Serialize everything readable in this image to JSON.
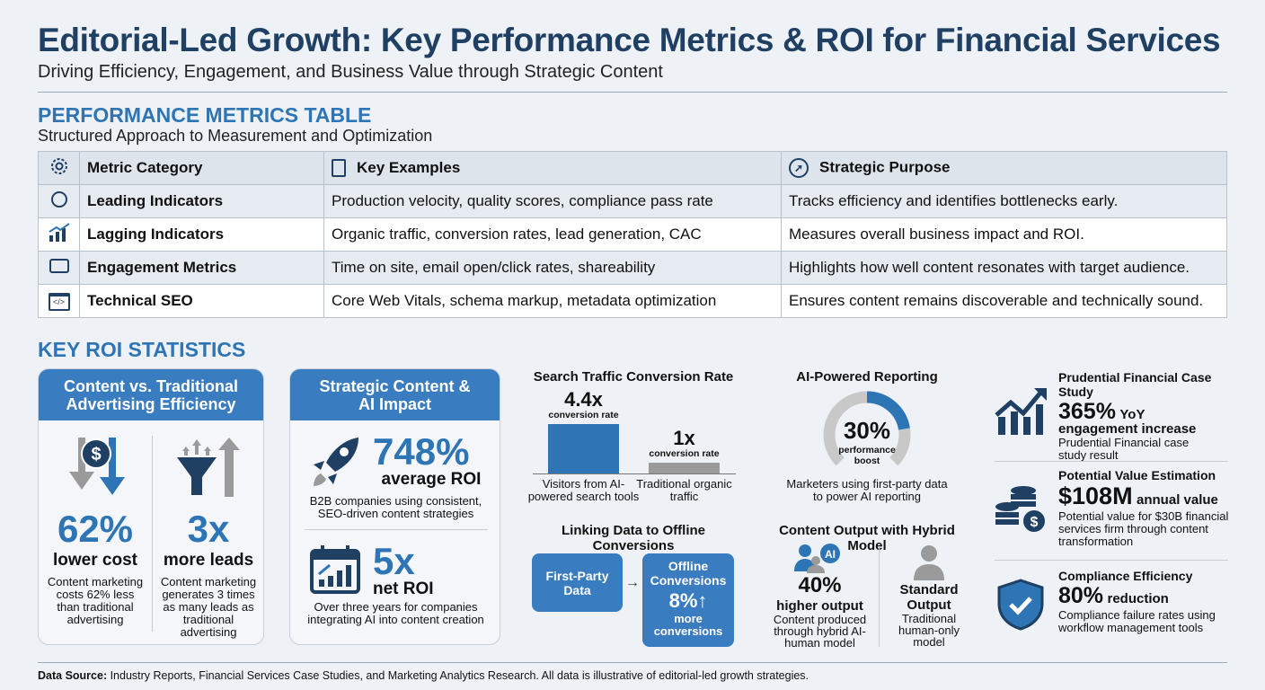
{
  "header": {
    "title": "Editorial-Led Growth: Key Performance Metrics & ROI for Financial Services",
    "subtitle": "Driving Efficiency, Engagement, and Business Value through Strategic Content"
  },
  "table_section": {
    "title": "PERFORMANCE METRICS TABLE",
    "subtitle": "Structured Approach to Measurement and Optimization",
    "columns": [
      {
        "label": "Metric Category",
        "icon": "gear-icon"
      },
      {
        "label": "Key Examples",
        "icon": "clipboard-icon"
      },
      {
        "label": "Strategic Purpose",
        "icon": "compass-icon"
      }
    ],
    "rows": [
      {
        "icon": "stopwatch-icon",
        "category": "Leading Indicators",
        "examples": "Production velocity, quality scores, compliance pass rate",
        "purpose": "Tracks efficiency and identifies bottlenecks early."
      },
      {
        "icon": "bar-chart-icon",
        "category": "Lagging Indicators",
        "examples": "Organic traffic, conversion rates, lead generation, CAC",
        "purpose": "Measures overall business impact and ROI."
      },
      {
        "icon": "cursor-click-icon",
        "category": "Engagement Metrics",
        "examples": "Time on site, email open/click rates, shareability",
        "purpose": "Highlights how well content resonates with target audience."
      },
      {
        "icon": "code-window-icon",
        "category": "Technical SEO",
        "examples": "Core Web Vitals, schema markup, metadata optimization",
        "purpose": "Ensures content remains discoverable and technically sound."
      }
    ]
  },
  "roi": {
    "title": "KEY ROI STATISTICS",
    "card1": {
      "title": "Content vs. Traditional Advertising Efficiency",
      "left": {
        "value": "62%",
        "label": "lower cost",
        "desc": "Content marketing costs 62% less than traditional advertising"
      },
      "right": {
        "value": "3x",
        "label": "more leads",
        "desc": "Content marketing generates 3 times as many leads as traditional advertising"
      }
    },
    "card2": {
      "title": "Strategic Content & AI Impact",
      "top": {
        "value": "748%",
        "label": "average ROI",
        "desc": "B2B companies using consistent, SEO-driven content strategies"
      },
      "bottom": {
        "value": "5x",
        "label": "net ROI",
        "desc": "Over three years for companies integrating AI into content creation"
      }
    },
    "search": {
      "title": "Search Traffic Conversion Rate",
      "bars": [
        {
          "value_label": "4.4x",
          "unit": "conversion rate",
          "category": "Visitors from AI-powered search tools",
          "value": 4.4,
          "color": "#2e75b6"
        },
        {
          "value_label": "1x",
          "unit": "conversion rate",
          "category": "Traditional organic traffic",
          "value": 1,
          "color": "#9a9a9a"
        }
      ]
    },
    "ai_reporting": {
      "title": "AI-Powered Reporting",
      "value": "30%",
      "label": "performance boost",
      "percent": 30,
      "desc": "Marketers using first-party data to power AI reporting"
    },
    "offline": {
      "title": "Linking Data to Offline Conversions",
      "from": "First-Party Data",
      "to": "Offline Conversions",
      "value": "8%",
      "label": "more conversions"
    },
    "hybrid": {
      "title": "Content Output with Hybrid Model",
      "left": {
        "value": "40%",
        "label": "higher output",
        "desc": "Content produced through hybrid AI-human model",
        "badge": "AI"
      },
      "right": {
        "label": "Standard Output",
        "desc": "Traditional human-only model"
      }
    },
    "side": [
      {
        "title": "Prudential Financial Case Study",
        "value": "365%",
        "suffix": "YoY",
        "label": "engagement increase",
        "desc": "Prudential Financial case study result",
        "icon": "growth-chart-icon"
      },
      {
        "title": "Potential Value Estimation",
        "value": "$108M",
        "suffix": "annual value",
        "label": "",
        "desc": "Potential value for $30B financial services firm through content transformation",
        "icon": "coins-icon"
      },
      {
        "title": "Compliance Efficiency",
        "value": "80%",
        "suffix": "reduction",
        "label": "",
        "desc": "Compliance failure rates using workflow management tools",
        "icon": "shield-check-icon"
      }
    ]
  },
  "footer": {
    "label": "Data Source:",
    "text": " Industry Reports, Financial Services Case Studies, and Marketing Analytics Research. All data is illustrative of editorial-led growth strategies."
  },
  "colors": {
    "navy": "#1f3f63",
    "accent": "#2e75b6",
    "gray": "#9a9a9a"
  }
}
